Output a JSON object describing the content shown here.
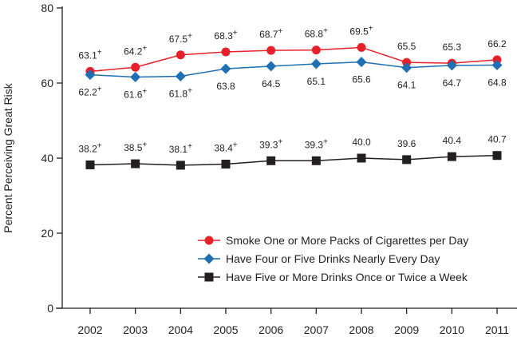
{
  "chart_data": {
    "type": "line",
    "title": "",
    "xlabel": "",
    "ylabel": "Percent Perceiving Great Risk",
    "ylim": [
      0,
      80
    ],
    "yticks": [
      0,
      20,
      40,
      60,
      80
    ],
    "grid": false,
    "legend_position": "bottom-right",
    "categories": [
      "2002",
      "2003",
      "2004",
      "2005",
      "2006",
      "2007",
      "2008",
      "2009",
      "2010",
      "2011"
    ],
    "series": [
      {
        "name": "Smoke One or More Packs of Cigarettes per Day",
        "color": "#e8202a",
        "marker": "circle",
        "label_position": "above",
        "values": [
          63.1,
          64.2,
          67.5,
          68.3,
          68.7,
          68.8,
          69.5,
          65.5,
          65.3,
          66.2
        ],
        "labels": [
          "63.1",
          "64.2",
          "67.5",
          "68.3",
          "68.7",
          "68.8",
          "69.5",
          "65.5",
          "65.3",
          "66.2"
        ],
        "plus": [
          true,
          true,
          true,
          true,
          true,
          true,
          true,
          false,
          false,
          false
        ]
      },
      {
        "name": "Have Four or Five Drinks Nearly Every Day",
        "color": "#1f6fb5",
        "marker": "diamond",
        "label_position": "below",
        "values": [
          62.2,
          61.6,
          61.8,
          63.8,
          64.5,
          65.1,
          65.6,
          64.1,
          64.7,
          64.8
        ],
        "labels": [
          "62.2",
          "61.6",
          "61.8",
          "63.8",
          "64.5",
          "65.1",
          "65.6",
          "64.1",
          "64.7",
          "64.8"
        ],
        "plus": [
          true,
          true,
          true,
          false,
          false,
          false,
          false,
          false,
          false,
          false
        ]
      },
      {
        "name": "Have Five or More Drinks Once or Twice a Week",
        "color": "#231f20",
        "marker": "square",
        "label_position": "above",
        "values": [
          38.2,
          38.5,
          38.1,
          38.4,
          39.3,
          39.3,
          40.0,
          39.6,
          40.4,
          40.7
        ],
        "labels": [
          "38.2",
          "38.5",
          "38.1",
          "38.4",
          "39.3",
          "39.3",
          "40.0",
          "39.6",
          "40.4",
          "40.7"
        ],
        "plus": [
          true,
          true,
          true,
          true,
          true,
          true,
          false,
          false,
          false,
          false
        ]
      }
    ],
    "significance_marker": "+"
  }
}
